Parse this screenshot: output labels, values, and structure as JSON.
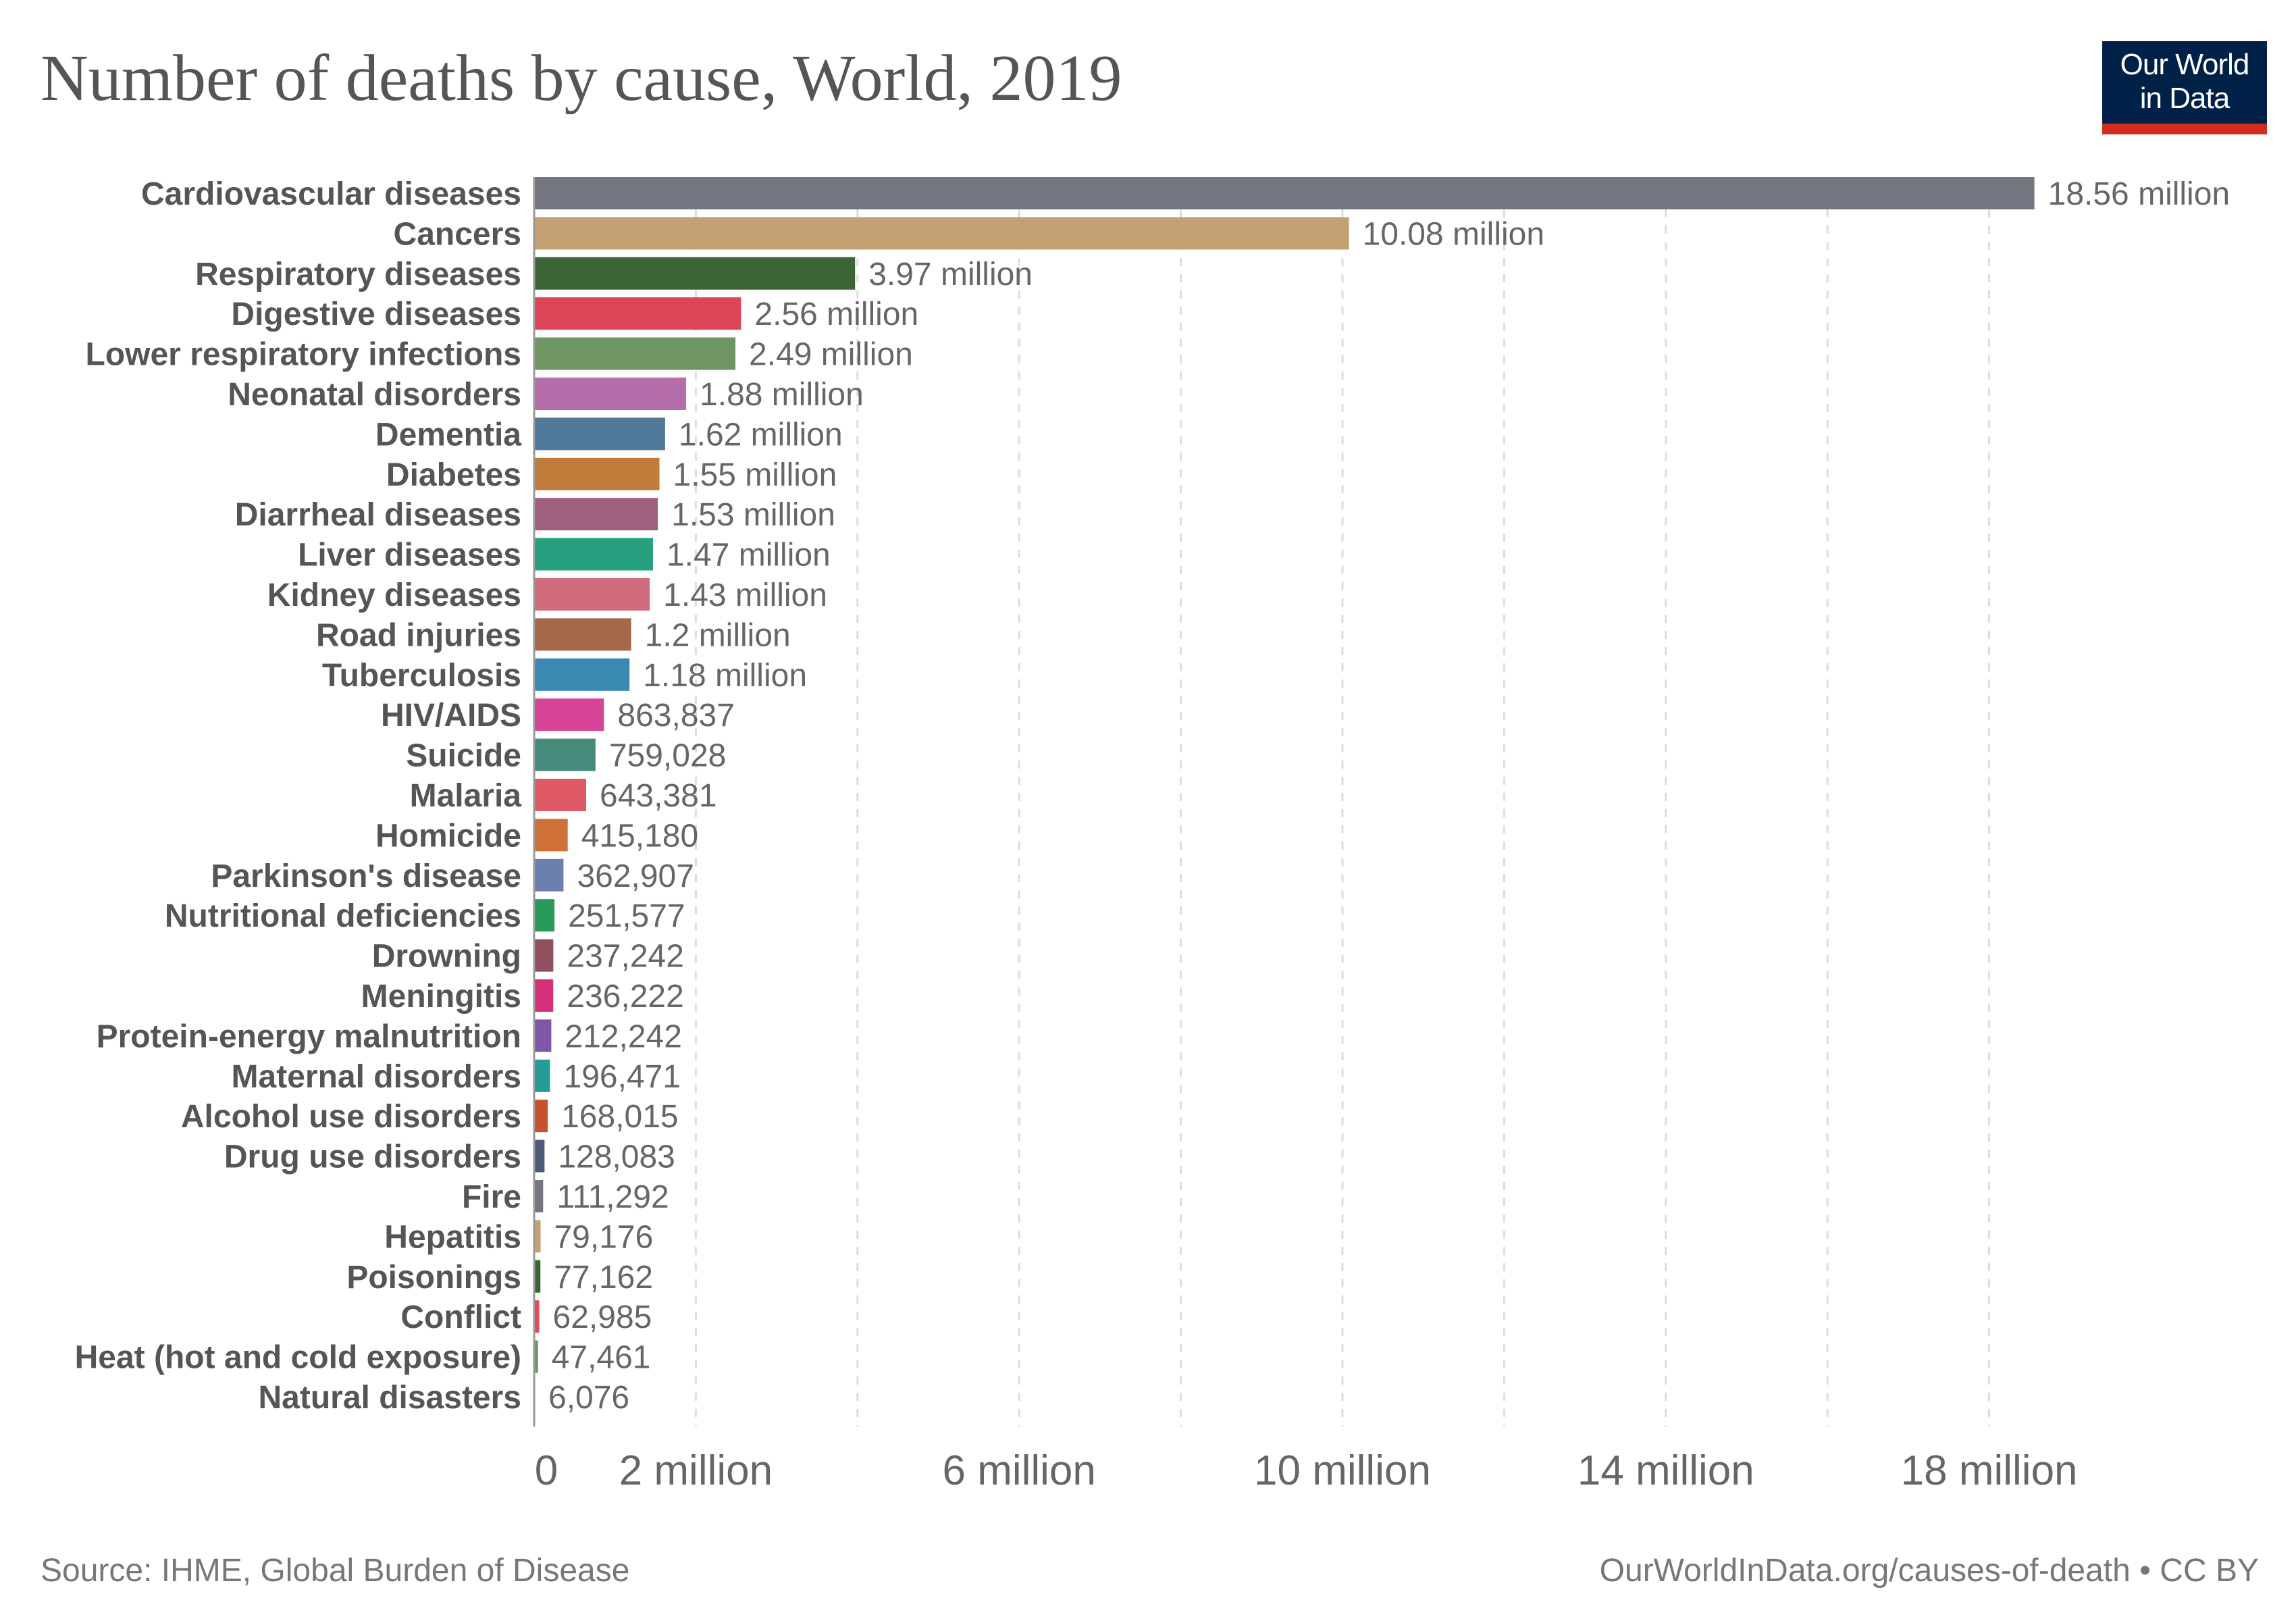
{
  "header": {
    "title": "Number of deaths by cause, World, 2019",
    "logo_line1": "Our World",
    "logo_line2": "in Data"
  },
  "footer": {
    "source": "Source: IHME, Global Burden of Disease",
    "link": "OurWorldInData.org/causes-of-death • CC BY"
  },
  "chart_data": {
    "type": "bar",
    "orientation": "horizontal",
    "title": "Number of deaths by cause, World, 2019",
    "xlabel": "",
    "ylabel": "",
    "xlim": [
      0,
      18560000
    ],
    "grid": true,
    "x_ticks": [
      0,
      2000000,
      6000000,
      10000000,
      14000000,
      18000000
    ],
    "x_tick_labels": [
      "0",
      "2 million",
      "6 million",
      "10 million",
      "14 million",
      "18 million"
    ],
    "gridlines": [
      2000000,
      4000000,
      6000000,
      8000000,
      10000000,
      12000000,
      14000000,
      16000000,
      18000000
    ],
    "categories": [
      "Cardiovascular diseases",
      "Cancers",
      "Respiratory diseases",
      "Digestive diseases",
      "Lower respiratory infections",
      "Neonatal disorders",
      "Dementia",
      "Diabetes",
      "Diarrheal diseases",
      "Liver diseases",
      "Kidney diseases",
      "Road injuries",
      "Tuberculosis",
      "HIV/AIDS",
      "Suicide",
      "Malaria",
      "Homicide",
      "Parkinson's disease",
      "Nutritional deficiencies",
      "Drowning",
      "Meningitis",
      "Protein-energy malnutrition",
      "Maternal disorders",
      "Alcohol use disorders",
      "Drug use disorders",
      "Fire",
      "Hepatitis",
      "Poisonings",
      "Conflict",
      "Heat (hot and cold exposure)",
      "Natural disasters"
    ],
    "values": [
      18560000,
      10080000,
      3970000,
      2560000,
      2490000,
      1880000,
      1620000,
      1550000,
      1530000,
      1470000,
      1430000,
      1200000,
      1180000,
      863837,
      759028,
      643381,
      415180,
      362907,
      251577,
      237242,
      236222,
      212242,
      196471,
      168015,
      128083,
      111292,
      79176,
      77162,
      62985,
      47461,
      6076
    ],
    "value_labels": [
      "18.56 million",
      "10.08 million",
      "3.97 million",
      "2.56 million",
      "2.49 million",
      "1.88 million",
      "1.62 million",
      "1.55 million",
      "1.53 million",
      "1.47 million",
      "1.43 million",
      "1.2 million",
      "1.18 million",
      "863,837",
      "759,028",
      "643,381",
      "415,180",
      "362,907",
      "251,577",
      "237,242",
      "236,222",
      "212,242",
      "196,471",
      "168,015",
      "128,083",
      "111,292",
      "79,176",
      "77,162",
      "62,985",
      "47,461",
      "6,076"
    ],
    "colors": [
      "#737680",
      "#c4a073",
      "#3c6435",
      "#dc4458",
      "#6f9660",
      "#b56eaa",
      "#507898",
      "#c07a3a",
      "#9f5f7e",
      "#26a07e",
      "#d06c7c",
      "#a4694a",
      "#3a89b3",
      "#d64497",
      "#468a7c",
      "#e05a66",
      "#d07138",
      "#6a7fae",
      "#2a9a5a",
      "#915060",
      "#d6307a",
      "#7d57a8",
      "#269c98",
      "#c5532e",
      "#4d5a7a",
      "#737680",
      "#c4a073",
      "#3c6435",
      "#e04a5a",
      "#6f9660",
      "#b56eaa"
    ]
  }
}
